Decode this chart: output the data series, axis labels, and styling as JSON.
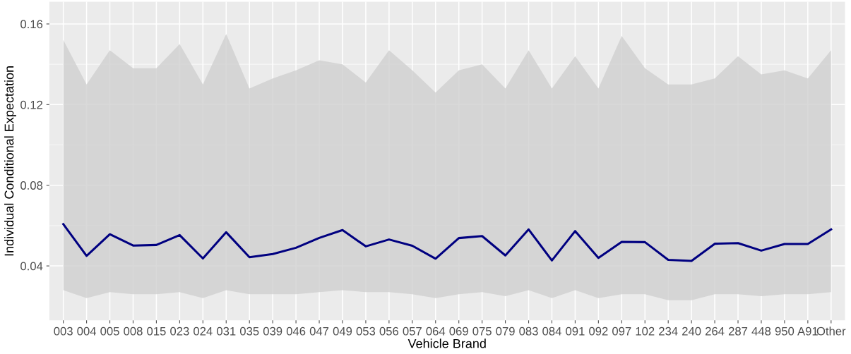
{
  "chart_data": {
    "type": "line",
    "xlabel": "Vehicle Brand",
    "ylabel": "Individual Conditional Expectation",
    "categories": [
      "003",
      "004",
      "005",
      "008",
      "015",
      "023",
      "024",
      "031",
      "035",
      "039",
      "046",
      "047",
      "049",
      "053",
      "056",
      "057",
      "064",
      "069",
      "075",
      "079",
      "083",
      "084",
      "091",
      "092",
      "097",
      "102",
      "234",
      "240",
      "264",
      "287",
      "448",
      "950",
      "A91",
      "Other"
    ],
    "series": [
      {
        "color": "#000080",
        "values": [
          0.0607,
          0.045,
          0.0557,
          0.0501,
          0.0504,
          0.0553,
          0.0437,
          0.0567,
          0.0443,
          0.0459,
          0.049,
          0.0539,
          0.0578,
          0.0497,
          0.0531,
          0.05,
          0.0436,
          0.0538,
          0.0548,
          0.0452,
          0.0581,
          0.0427,
          0.0573,
          0.044,
          0.0519,
          0.0518,
          0.043,
          0.0425,
          0.051,
          0.0513,
          0.0476,
          0.0509,
          0.0509,
          0.0581
        ],
        "lower": [
          0.028,
          0.024,
          0.027,
          0.026,
          0.026,
          0.027,
          0.024,
          0.028,
          0.026,
          0.026,
          0.026,
          0.027,
          0.028,
          0.027,
          0.027,
          0.026,
          0.024,
          0.026,
          0.027,
          0.025,
          0.028,
          0.024,
          0.028,
          0.024,
          0.026,
          0.026,
          0.023,
          0.023,
          0.026,
          0.026,
          0.025,
          0.026,
          0.026,
          0.027
        ],
        "upper": [
          0.152,
          0.13,
          0.147,
          0.138,
          0.138,
          0.15,
          0.13,
          0.155,
          0.128,
          0.133,
          0.137,
          0.142,
          0.14,
          0.131,
          0.147,
          0.137,
          0.126,
          0.137,
          0.14,
          0.128,
          0.147,
          0.128,
          0.144,
          0.128,
          0.154,
          0.138,
          0.13,
          0.13,
          0.133,
          0.144,
          0.135,
          0.137,
          0.133,
          0.147
        ]
      }
    ],
    "ylim": [
      0.013,
      0.171
    ],
    "yticks": [
      0.04,
      0.08,
      0.12,
      0.16
    ],
    "grid": true,
    "marker": "none",
    "line_style": "solid"
  }
}
